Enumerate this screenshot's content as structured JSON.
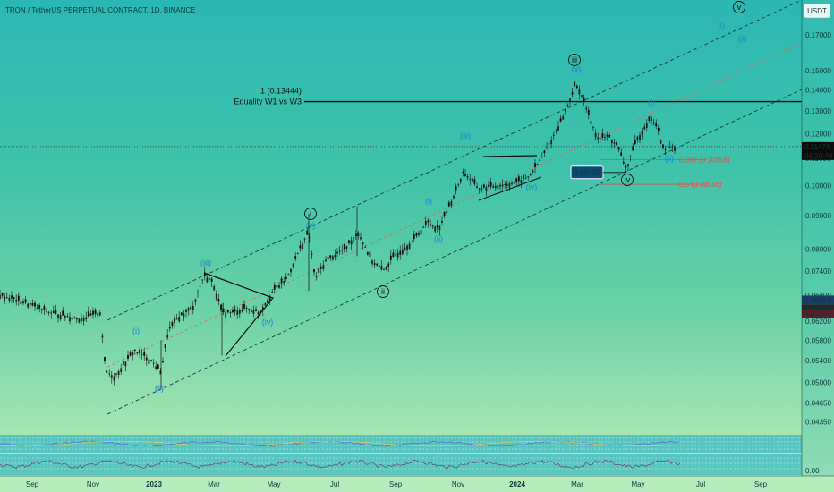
{
  "header": {
    "title": "TRON / TetherUS PERPETUAL CONTRACT, 1D, BINANCE"
  },
  "currency_button": "USDT",
  "chart_data": {
    "type": "candlestick",
    "price_ticks": [
      "0.17000",
      "0.15000",
      "0.14000",
      "0.13000",
      "0.12000",
      "0.11000",
      "0.10000",
      "0.09000",
      "0.08000",
      "0.07400",
      "0.06800",
      "0.06200",
      "0.05800",
      "0.05400",
      "0.05000",
      "0.04650",
      "0.04350"
    ],
    "time_ticks": [
      "Sep",
      "Nov",
      "2023",
      "Mar",
      "May",
      "Jul",
      "Sep",
      "Nov",
      "2024",
      "Mar",
      "May",
      "Jul",
      "Sep"
    ],
    "price_badges": [
      {
        "value": "0.11474",
        "sub": "06:20:49",
        "bg": "#0b0b0b",
        "fg": "#ffffff"
      },
      {
        "value": "0.06684",
        "bg": "#1c3e66",
        "fg": "#ffffff"
      },
      {
        "value": "0.06476",
        "bg": "#262626",
        "fg": "#ffffff"
      },
      {
        "value": "0.06372",
        "bg": "#5a1d2c",
        "fg": "#ffffff"
      }
    ],
    "current_price": 0.11474,
    "equality_line": {
      "value": 0.13444,
      "label1": "1 (0.13444)",
      "label2": "Equality W1 vs W3"
    },
    "fib_levels": [
      {
        "label": "0.382 (0.10958)",
        "value": 0.10958
      },
      {
        "label": "0.5 (0.10046)",
        "value": 0.10046
      }
    ],
    "low_box": "0.10475",
    "wave_labels_black": [
      "i",
      "ii",
      "iii",
      "iv",
      "v"
    ],
    "wave_labels_blue": [
      "(i)",
      "(ii)",
      "(iii)",
      "(iv)",
      "(v)",
      "(i)",
      "(ii)",
      "(iii)",
      "(iv)",
      "(v)",
      "(i)",
      "(ii)",
      "(i)",
      "(ii)",
      "(iii)",
      "(iv)",
      "(i)",
      "(ii)",
      "(i)",
      "(ii)"
    ],
    "indicator_ticks": [
      "0.00"
    ],
    "colors": {
      "channel_line": "#1a3a3a",
      "midline": "#d66a5a",
      "fib_line": "#d9534f",
      "candle": "#111111",
      "wave_blue": "#1e7fd8"
    }
  }
}
